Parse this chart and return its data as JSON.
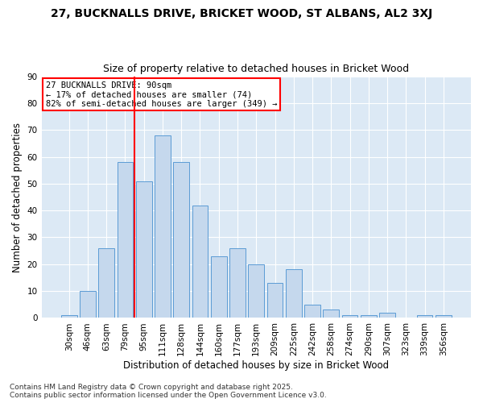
{
  "title1": "27, BUCKNALLS DRIVE, BRICKET WOOD, ST ALBANS, AL2 3XJ",
  "title2": "Size of property relative to detached houses in Bricket Wood",
  "xlabel": "Distribution of detached houses by size in Bricket Wood",
  "ylabel": "Number of detached properties",
  "categories": [
    "30sqm",
    "46sqm",
    "63sqm",
    "79sqm",
    "95sqm",
    "111sqm",
    "128sqm",
    "144sqm",
    "160sqm",
    "177sqm",
    "193sqm",
    "209sqm",
    "225sqm",
    "242sqm",
    "258sqm",
    "274sqm",
    "290sqm",
    "307sqm",
    "323sqm",
    "339sqm",
    "356sqm"
  ],
  "values": [
    1,
    10,
    26,
    58,
    51,
    68,
    58,
    42,
    23,
    26,
    20,
    13,
    18,
    5,
    3,
    1,
    1,
    2,
    0,
    1,
    1
  ],
  "bar_color": "#c5d8ed",
  "bar_edge_color": "#5b9bd5",
  "vline_index": 3,
  "vline_color": "red",
  "annotation_text": "27 BUCKNALLS DRIVE: 90sqm\n← 17% of detached houses are smaller (74)\n82% of semi-detached houses are larger (349) →",
  "annotation_box_color": "white",
  "annotation_box_edge_color": "red",
  "ylim": [
    0,
    90
  ],
  "yticks": [
    0,
    10,
    20,
    30,
    40,
    50,
    60,
    70,
    80,
    90
  ],
  "bg_color": "#dce9f5",
  "footer": "Contains HM Land Registry data © Crown copyright and database right 2025.\nContains public sector information licensed under the Open Government Licence v3.0.",
  "title_fontsize": 10,
  "subtitle_fontsize": 9,
  "axis_label_fontsize": 8.5,
  "tick_fontsize": 7.5,
  "annotation_fontsize": 7.5,
  "footer_fontsize": 6.5
}
